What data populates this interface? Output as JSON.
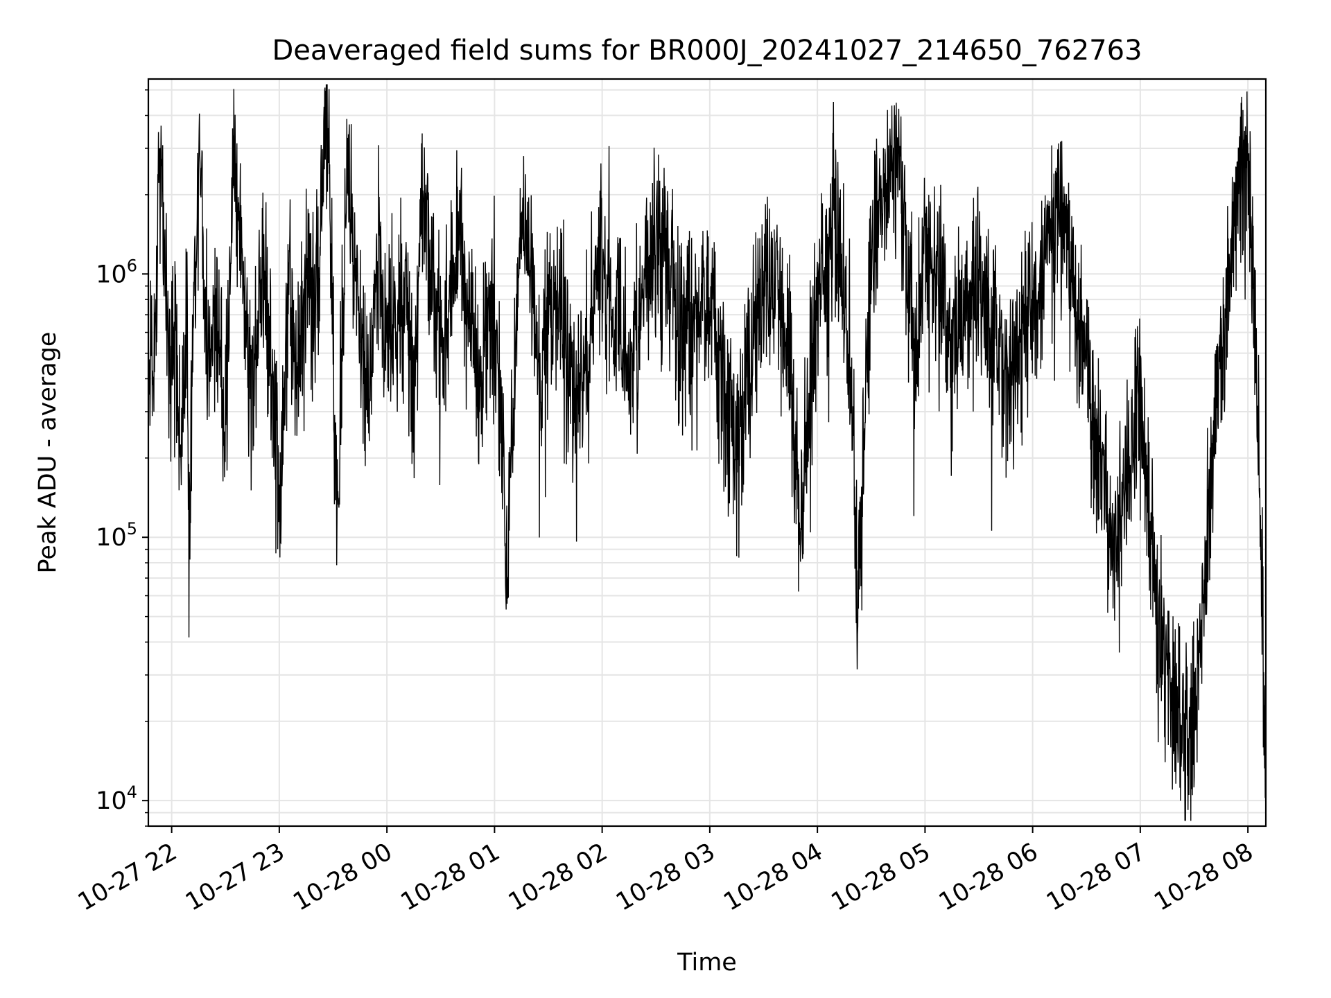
{
  "chart_data": {
    "type": "line",
    "title": "Deaveraged field sums for BR000J_20241027_214650_762763",
    "xlabel": "Time",
    "ylabel": "Peak ADU - average",
    "yscale": "log",
    "grid": true,
    "legend": "none",
    "line_color": "#000000",
    "grid_color": "#e5e5e5",
    "x_start": "2024-10-27 21:47",
    "x_end": "2024-10-28 08:10",
    "xlim": [
      "2024-10-27 21:47",
      "2024-10-28 08:10"
    ],
    "ylim": [
      8000,
      5500000
    ],
    "x_ticks": [
      {
        "t": "2024-10-27 22:00",
        "label": "10-27 22"
      },
      {
        "t": "2024-10-27 23:00",
        "label": "10-27 23"
      },
      {
        "t": "2024-10-28 00:00",
        "label": "10-28 00"
      },
      {
        "t": "2024-10-28 01:00",
        "label": "10-28 01"
      },
      {
        "t": "2024-10-28 02:00",
        "label": "10-28 02"
      },
      {
        "t": "2024-10-28 03:00",
        "label": "10-28 03"
      },
      {
        "t": "2024-10-28 04:00",
        "label": "10-28 04"
      },
      {
        "t": "2024-10-28 05:00",
        "label": "10-28 05"
      },
      {
        "t": "2024-10-28 06:00",
        "label": "10-28 06"
      },
      {
        "t": "2024-10-28 07:00",
        "label": "10-28 07"
      },
      {
        "t": "2024-10-28 08:00",
        "label": "10-28 08"
      }
    ],
    "y_ticks": [
      {
        "value": 10000,
        "base": "10",
        "exp": "4"
      },
      {
        "value": 100000,
        "base": "10",
        "exp": "5"
      },
      {
        "value": 1000000,
        "base": "10",
        "exp": "6"
      }
    ],
    "series": [
      {
        "points": [
          [
            "2024-10-27 21:47",
            520000
          ],
          [
            "2024-10-27 21:49",
            420000
          ],
          [
            "2024-10-27 21:51",
            560000
          ],
          [
            "2024-10-27 21:53",
            2500000
          ],
          [
            "2024-10-27 21:55",
            1800000
          ],
          [
            "2024-10-27 21:57",
            950000
          ],
          [
            "2024-10-27 21:59",
            300000
          ],
          [
            "2024-10-27 22:02",
            800000
          ],
          [
            "2024-10-27 22:05",
            200000
          ],
          [
            "2024-10-27 22:08",
            700000
          ],
          [
            "2024-10-27 22:10",
            140000
          ],
          [
            "2024-10-27 22:13",
            850000
          ],
          [
            "2024-10-27 22:16",
            3200000
          ],
          [
            "2024-10-27 22:20",
            400000
          ],
          [
            "2024-10-27 22:25",
            900000
          ],
          [
            "2024-10-27 22:30",
            250000
          ],
          [
            "2024-10-27 22:35",
            2600000
          ],
          [
            "2024-10-27 22:40",
            700000
          ],
          [
            "2024-10-27 22:45",
            350000
          ],
          [
            "2024-10-27 22:50",
            1100000
          ],
          [
            "2024-10-27 22:55",
            600000
          ],
          [
            "2024-10-27 23:00",
            120000
          ],
          [
            "2024-10-27 23:05",
            900000
          ],
          [
            "2024-10-27 23:10",
            500000
          ],
          [
            "2024-10-27 23:15",
            1200000
          ],
          [
            "2024-10-27 23:20",
            700000
          ],
          [
            "2024-10-27 23:26",
            4000000
          ],
          [
            "2024-10-27 23:30",
            800000
          ],
          [
            "2024-10-27 23:32",
            115000
          ],
          [
            "2024-10-27 23:38",
            2500000
          ],
          [
            "2024-10-27 23:45",
            700000
          ],
          [
            "2024-10-27 23:50",
            400000
          ],
          [
            "2024-10-27 23:55",
            1200000
          ],
          [
            "2024-10-28 00:00",
            600000
          ],
          [
            "2024-10-28 00:10",
            900000
          ],
          [
            "2024-10-28 00:15",
            300000
          ],
          [
            "2024-10-28 00:20",
            2200000
          ],
          [
            "2024-10-28 00:30",
            600000
          ],
          [
            "2024-10-28 00:40",
            1500000
          ],
          [
            "2024-10-28 00:50",
            400000
          ],
          [
            "2024-10-28 01:00",
            800000
          ],
          [
            "2024-10-28 01:07",
            85000
          ],
          [
            "2024-10-28 01:15",
            1800000
          ],
          [
            "2024-10-28 01:25",
            500000
          ],
          [
            "2024-10-28 01:35",
            900000
          ],
          [
            "2024-10-28 01:45",
            300000
          ],
          [
            "2024-10-28 02:00",
            1200000
          ],
          [
            "2024-10-28 02:15",
            400000
          ],
          [
            "2024-10-28 02:30",
            1500000
          ],
          [
            "2024-10-28 02:45",
            600000
          ],
          [
            "2024-10-28 03:00",
            800000
          ],
          [
            "2024-10-28 03:15",
            200000
          ],
          [
            "2024-10-28 03:30",
            1000000
          ],
          [
            "2024-10-28 03:45",
            500000
          ],
          [
            "2024-10-28 03:50",
            90000
          ],
          [
            "2024-10-28 04:00",
            900000
          ],
          [
            "2024-10-28 04:10",
            1700000
          ],
          [
            "2024-10-28 04:20",
            300000
          ],
          [
            "2024-10-28 04:22",
            50000
          ],
          [
            "2024-10-28 04:30",
            1200000
          ],
          [
            "2024-10-28 04:45",
            3000000
          ],
          [
            "2024-10-28 04:55",
            400000
          ],
          [
            "2024-10-28 05:00",
            1500000
          ],
          [
            "2024-10-28 05:15",
            500000
          ],
          [
            "2024-10-28 05:30",
            1100000
          ],
          [
            "2024-10-28 05:45",
            400000
          ],
          [
            "2024-10-28 06:00",
            700000
          ],
          [
            "2024-10-28 06:15",
            2000000
          ],
          [
            "2024-10-28 06:30",
            400000
          ],
          [
            "2024-10-28 06:45",
            80000
          ],
          [
            "2024-10-28 07:00",
            350000
          ],
          [
            "2024-10-28 07:10",
            40000
          ],
          [
            "2024-10-28 07:20",
            25000
          ],
          [
            "2024-10-28 07:28",
            17000
          ],
          [
            "2024-10-28 07:35",
            60000
          ],
          [
            "2024-10-28 07:45",
            500000
          ],
          [
            "2024-10-28 07:55",
            2200000
          ],
          [
            "2024-10-28 08:00",
            2500000
          ],
          [
            "2024-10-28 08:04",
            700000
          ],
          [
            "2024-10-28 08:07",
            100000
          ],
          [
            "2024-10-28 08:10",
            11000
          ]
        ]
      }
    ]
  }
}
